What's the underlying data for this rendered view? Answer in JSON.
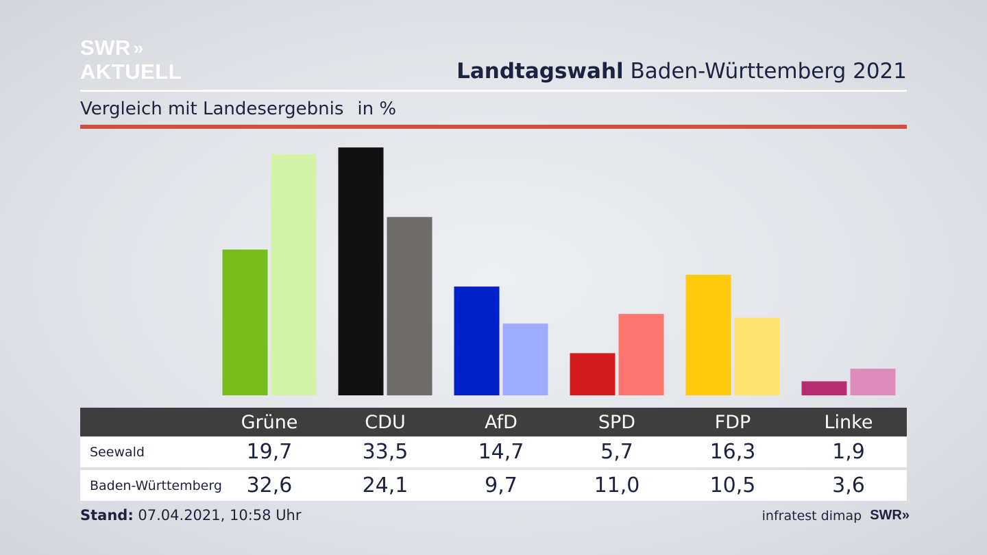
{
  "logo": {
    "line1": "SWR",
    "line2": "AKTUELL",
    "chevrons": "»"
  },
  "header": {
    "title_bold": "Landtagswahl",
    "title_rest": "Baden-Württemberg 2021"
  },
  "subtitle": {
    "text": "Vergleich mit Landesergebnis",
    "unit": "in %"
  },
  "chart_data": {
    "type": "bar",
    "categories": [
      "Grüne",
      "CDU",
      "AfD",
      "SPD",
      "FDP",
      "Linke"
    ],
    "series": [
      {
        "name": "Seewald",
        "values": [
          19.7,
          33.5,
          14.7,
          5.7,
          16.3,
          1.9
        ]
      },
      {
        "name": "Baden-Württemberg",
        "values": [
          32.6,
          24.1,
          9.7,
          11.0,
          10.5,
          3.6
        ]
      }
    ],
    "value_labels": {
      "Seewald": [
        "19,7",
        "33,5",
        "14,7",
        "5,7",
        "16,3",
        "1,9"
      ],
      "Baden-Württemberg": [
        "32,6",
        "24,1",
        "9,7",
        "11,0",
        "10,5",
        "3,6"
      ]
    },
    "colors": {
      "Seewald": [
        "#78bc1b",
        "#121212",
        "#0020c8",
        "#d41c20",
        "#ffca0b",
        "#b82c70"
      ],
      "Baden-Württemberg": [
        "#d3f2a8",
        "#6e6d6b",
        "#9eabff",
        "#ff7670",
        "#ffe271",
        "#df8cbc"
      ]
    },
    "ylim": [
      0,
      35
    ],
    "grid": false,
    "legend": "table-below"
  },
  "footer": {
    "stand_label": "Stand:",
    "stand_value": "07.04.2021, 10:58 Uhr",
    "source": "infratest dimap",
    "brand": "SWR",
    "brand_chevrons": "»"
  }
}
